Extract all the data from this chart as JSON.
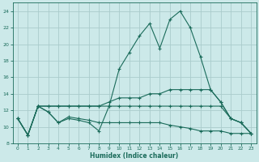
{
  "xlabel": "Humidex (Indice chaleur)",
  "bg_color": "#cce9e9",
  "grid_color": "#aacccc",
  "line_color": "#1a6b5a",
  "xlim": [
    -0.5,
    23.5
  ],
  "ylim": [
    8,
    25
  ],
  "yticks": [
    8,
    10,
    12,
    14,
    16,
    18,
    20,
    22,
    24
  ],
  "xticks": [
    0,
    1,
    2,
    3,
    4,
    5,
    6,
    7,
    8,
    9,
    10,
    11,
    12,
    13,
    14,
    15,
    16,
    17,
    18,
    19,
    20,
    21,
    22,
    23
  ],
  "series1_x": [
    0,
    1,
    2,
    3,
    4,
    5,
    6,
    7,
    8,
    9,
    10,
    11,
    12,
    13,
    14,
    15,
    16,
    17,
    18,
    19,
    20,
    21,
    22,
    23
  ],
  "series1_y": [
    11.0,
    9.0,
    12.5,
    11.8,
    10.5,
    11.0,
    10.8,
    10.5,
    9.5,
    12.5,
    17.0,
    19.0,
    21.0,
    22.5,
    19.5,
    23.0,
    24.0,
    22.0,
    18.5,
    14.5,
    13.0,
    11.0,
    10.5,
    9.2
  ],
  "series2_x": [
    0,
    1,
    2,
    3,
    4,
    5,
    6,
    7,
    8,
    9,
    10,
    11,
    12,
    13,
    14,
    15,
    16,
    17,
    18,
    19,
    20,
    21,
    22,
    23
  ],
  "series2_y": [
    11.0,
    9.0,
    12.5,
    12.5,
    12.5,
    12.5,
    12.5,
    12.5,
    12.5,
    13.0,
    13.5,
    13.5,
    13.5,
    14.0,
    14.0,
    14.5,
    14.5,
    14.5,
    14.5,
    14.5,
    13.0,
    11.0,
    10.5,
    9.2
  ],
  "series3_x": [
    0,
    1,
    2,
    3,
    4,
    5,
    6,
    7,
    8,
    9,
    10,
    11,
    12,
    13,
    14,
    15,
    16,
    17,
    18,
    19,
    20,
    21,
    22,
    23
  ],
  "series3_y": [
    11.0,
    9.0,
    12.5,
    12.5,
    12.5,
    12.5,
    12.5,
    12.5,
    12.5,
    12.5,
    12.5,
    12.5,
    12.5,
    12.5,
    12.5,
    12.5,
    12.5,
    12.5,
    12.5,
    12.5,
    12.5,
    11.0,
    10.5,
    9.2
  ],
  "series4_x": [
    0,
    1,
    2,
    3,
    4,
    5,
    6,
    7,
    8,
    9,
    10,
    11,
    12,
    13,
    14,
    15,
    16,
    17,
    18,
    19,
    20,
    21,
    22,
    23
  ],
  "series4_y": [
    11.0,
    9.0,
    12.5,
    11.8,
    10.5,
    11.2,
    11.0,
    10.8,
    10.5,
    10.5,
    10.5,
    10.5,
    10.5,
    10.5,
    10.5,
    10.2,
    10.0,
    9.8,
    9.5,
    9.5,
    9.5,
    9.2,
    9.2,
    9.2
  ]
}
